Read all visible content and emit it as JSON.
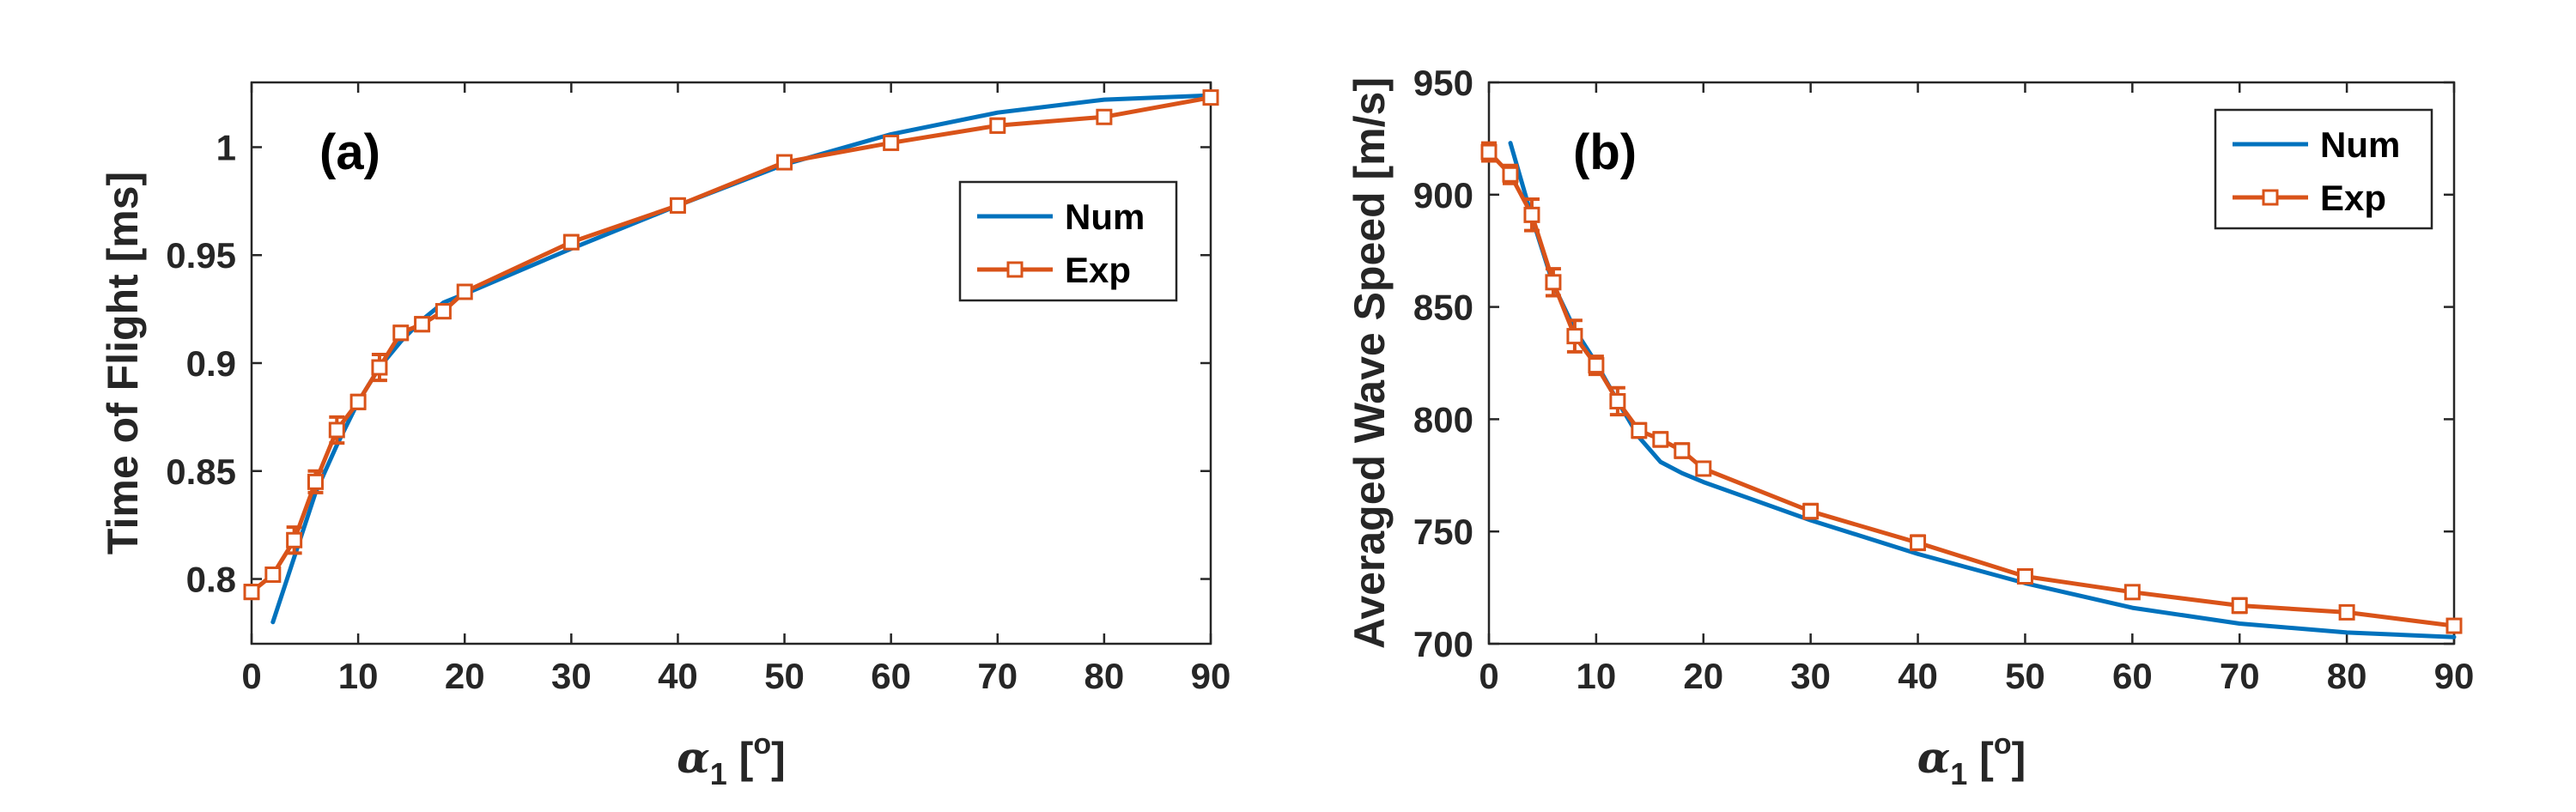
{
  "colors": {
    "num": "#0072BD",
    "exp": "#D95319",
    "marker_fill": "#ffffff",
    "axis": "#262626"
  },
  "chart_data": [
    {
      "type": "line",
      "panel_label": "(a)",
      "xlabel_symbol": "α",
      "xlabel_sub": "1",
      "xlabel_unit_open": " [",
      "xlabel_unit_sup": "o",
      "xlabel_unit_close": "]",
      "ylabel": "Time of Flight [ms]",
      "xlim": [
        0,
        90
      ],
      "ylim": [
        0.77,
        1.03
      ],
      "xticks": [
        0,
        10,
        20,
        30,
        40,
        50,
        60,
        70,
        80,
        90
      ],
      "xtick_labels": [
        "0",
        "10",
        "20",
        "30",
        "40",
        "50",
        "60",
        "70",
        "80",
        "90"
      ],
      "yticks": [
        0.8,
        0.85,
        0.9,
        0.95,
        1.0
      ],
      "ytick_labels": [
        "0.8",
        "0.85",
        "0.9",
        "0.95",
        "1"
      ],
      "legend_position": "top-right-inner",
      "series": [
        {
          "name": "Num",
          "style": "line",
          "x": [
            2,
            4,
            6,
            8,
            10,
            12,
            14,
            16,
            18,
            20,
            30,
            40,
            50,
            60,
            70,
            80,
            90
          ],
          "y": [
            0.78,
            0.81,
            0.84,
            0.862,
            0.882,
            0.898,
            0.91,
            0.92,
            0.928,
            0.932,
            0.953,
            0.973,
            0.992,
            1.006,
            1.016,
            1.022,
            1.024
          ]
        },
        {
          "name": "Exp",
          "style": "line-square-errorbar",
          "x": [
            0,
            2,
            4,
            6,
            8,
            10,
            12,
            14,
            16,
            18,
            20,
            30,
            40,
            50,
            60,
            70,
            80,
            90
          ],
          "y": [
            0.794,
            0.802,
            0.818,
            0.845,
            0.869,
            0.882,
            0.898,
            0.914,
            0.918,
            0.924,
            0.933,
            0.956,
            0.973,
            0.993,
            1.002,
            1.01,
            1.014,
            1.023
          ],
          "err": [
            0.003,
            0.003,
            0.006,
            0.005,
            0.006,
            0.003,
            0.006,
            0.003,
            0.003,
            0.003,
            0.002,
            0.003,
            0.003,
            0.002,
            0.002,
            0.003,
            0.002,
            0.002
          ]
        }
      ]
    },
    {
      "type": "line",
      "panel_label": "(b)",
      "xlabel_symbol": "α",
      "xlabel_sub": "1",
      "xlabel_unit_open": " [",
      "xlabel_unit_sup": "o",
      "xlabel_unit_close": "]",
      "ylabel": "Averaged Wave Speed [m/s]",
      "xlim": [
        0,
        90
      ],
      "ylim": [
        700,
        950
      ],
      "xticks": [
        0,
        10,
        20,
        30,
        40,
        50,
        60,
        70,
        80,
        90
      ],
      "xtick_labels": [
        "0",
        "10",
        "20",
        "30",
        "40",
        "50",
        "60",
        "70",
        "80",
        "90"
      ],
      "yticks": [
        700,
        750,
        800,
        850,
        900,
        950
      ],
      "ytick_labels": [
        "700",
        "750",
        "800",
        "850",
        "900",
        "950"
      ],
      "legend_position": "top-right-inner",
      "series": [
        {
          "name": "Num",
          "style": "line",
          "x": [
            2,
            4,
            6,
            8,
            10,
            12,
            14,
            16,
            18,
            20,
            30,
            40,
            50,
            60,
            70,
            80,
            90
          ],
          "y": [
            923,
            890,
            860,
            840,
            825,
            808,
            792,
            781,
            776,
            772,
            755,
            740,
            727,
            716,
            709,
            705,
            703
          ]
        },
        {
          "name": "Exp",
          "style": "line-square-errorbar",
          "x": [
            0,
            2,
            4,
            6,
            8,
            10,
            12,
            14,
            16,
            18,
            20,
            30,
            40,
            50,
            60,
            70,
            80,
            90
          ],
          "y": [
            919,
            909,
            891,
            861,
            837,
            824,
            808,
            795,
            791,
            786,
            778,
            759,
            745,
            730,
            723,
            717,
            714,
            708
          ],
          "err": [
            4,
            4,
            7,
            6,
            7,
            4,
            6,
            3,
            3,
            3,
            2,
            3,
            3,
            2,
            2,
            3,
            2,
            2
          ]
        }
      ]
    }
  ]
}
